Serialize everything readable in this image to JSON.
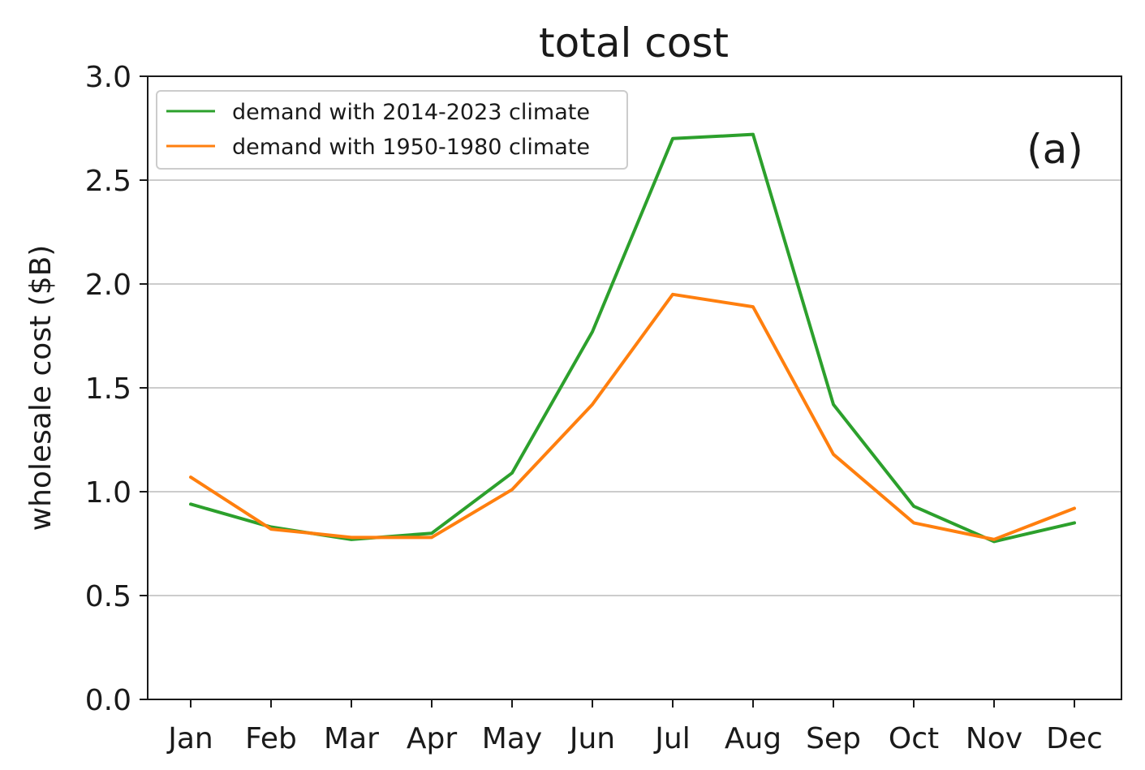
{
  "chart_data": {
    "type": "line",
    "title": "total cost",
    "ylabel": "wholesale cost ($B)",
    "xlabel": "",
    "panel_label": "(a)",
    "categories": [
      "Jan",
      "Feb",
      "Mar",
      "Apr",
      "May",
      "Jun",
      "Jul",
      "Aug",
      "Sep",
      "Oct",
      "Nov",
      "Dec"
    ],
    "ylim": [
      0.0,
      3.0
    ],
    "yticks": [
      "0.0",
      "0.5",
      "1.0",
      "1.5",
      "2.0",
      "2.5",
      "3.0"
    ],
    "grid": "horizontal",
    "legend_position": "top-left",
    "series": [
      {
        "name": "demand with 2014-2023 climate",
        "color": "#2ca02c",
        "values": [
          0.94,
          0.83,
          0.77,
          0.8,
          1.09,
          1.77,
          2.7,
          2.72,
          1.42,
          0.93,
          0.76,
          0.85
        ]
      },
      {
        "name": "demand with 1950-1980 climate",
        "color": "#ff7f0e",
        "values": [
          1.07,
          0.82,
          0.78,
          0.78,
          1.01,
          1.42,
          1.95,
          1.89,
          1.18,
          0.85,
          0.77,
          0.92
        ]
      }
    ]
  }
}
